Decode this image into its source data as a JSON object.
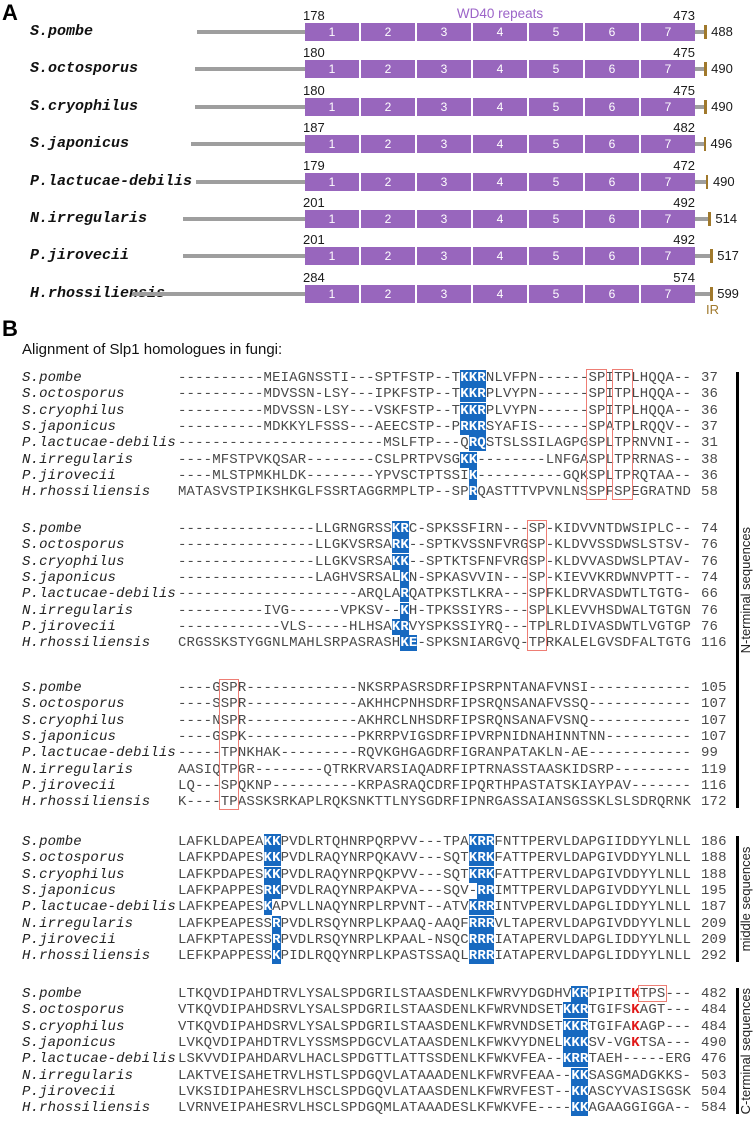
{
  "figure": {
    "panel_a_label": "A",
    "panel_b_label": "B",
    "wd40_label": "WD40 repeats",
    "ir_label": "IR",
    "alignment_title": "Alignment of Slp1 homologues in fungi:",
    "colors": {
      "domain_box": "#9866bd",
      "wd40_text": "#9c64c8",
      "backbone_line": "#9e9e9e",
      "terminal_tick": "#a0792c",
      "highlight_blue": "#1769c0",
      "highlight_red_letter": "#e01818",
      "red_box_border": "#ee7d74"
    },
    "repeat_numbers": [
      "1",
      "2",
      "3",
      "4",
      "5",
      "6",
      "7"
    ],
    "domains": [
      {
        "species": "S.pombe",
        "start": 178,
        "end": 473,
        "total": 488
      },
      {
        "species": "S.octosporus",
        "start": 180,
        "end": 475,
        "total": 490
      },
      {
        "species": "S.cryophilus",
        "start": 180,
        "end": 475,
        "total": 490
      },
      {
        "species": "S.japonicus",
        "start": 187,
        "end": 482,
        "total": 496
      },
      {
        "species": "P.lactucae-debilis",
        "start": 179,
        "end": 472,
        "total": 490
      },
      {
        "species": "N.irregularis",
        "start": 201,
        "end": 492,
        "total": 514
      },
      {
        "species": "P.jirovecii",
        "start": 201,
        "end": 492,
        "total": 517
      },
      {
        "species": "H.rhossiliensis",
        "start": 284,
        "end": 574,
        "total": 599
      }
    ],
    "blocks": [
      {
        "red_boxes": [
          {
            "col": 48,
            "len": 2
          },
          {
            "col": 51,
            "len": 2
          }
        ],
        "rows": [
          {
            "name": "S.pombe",
            "seq": "----------MEIAGNSSTI---SPTFSTP--TKKRNLVFPN------SPITPLHQQA--",
            "num": "37",
            "blue": [
              [
                33,
                3
              ]
            ]
          },
          {
            "name": "S.octosporus",
            "seq": "----------MDVSSN-LSY---IPKFSTP--TKKRPLVYPN------SPITPLHQQA--",
            "num": "36",
            "blue": [
              [
                33,
                3
              ]
            ]
          },
          {
            "name": "S.cryophilus",
            "seq": "----------MDVSSN-LSY---VSKFSTP--TKKRPLVYPN------SPITPLHQQA--",
            "num": "36",
            "blue": [
              [
                33,
                3
              ]
            ]
          },
          {
            "name": "S.japonicus",
            "seq": "----------MDKKYLFSSS---AEECSTP--PRKRSYAFIS------SPATPLRQQV--",
            "num": "37",
            "blue": [
              [
                33,
                3
              ]
            ]
          },
          {
            "name": "P.lactucae-debilis",
            "seq": "------------------------MSLFTP---QRQSTSLSSILAGPGSPLTPRNVNI--",
            "num": "31",
            "blue": [
              [
                34,
                2
              ]
            ]
          },
          {
            "name": "N.irregularis",
            "seq": "----MFSTPVKQSAR--------CSLPRTPVSGKK--------LNFGASPLTPRRNAS--",
            "num": "38",
            "blue": [
              [
                33,
                2
              ]
            ]
          },
          {
            "name": "P.jirovecii",
            "seq": "----MLSTPMKHLDK--------YPVSCTPTSSIK----------GQKSPLTPRQTAA--",
            "num": "36",
            "blue": [
              [
                34,
                1
              ]
            ]
          },
          {
            "name": "H.rhossiliensis",
            "seq": "MATASVSTPIKSHKGLFSSRTAGGRMPLTP--SPRQASTTTVPVNLNSSPFSPEGRATND",
            "num": "58",
            "blue": [
              [
                34,
                1
              ]
            ]
          }
        ]
      },
      {
        "red_boxes": [
          {
            "col": 41,
            "len": 2
          }
        ],
        "rows": [
          {
            "name": "S.pombe",
            "seq": "----------------LLGRNGRSSKRC-SPKSSFIRN---SP-KIDVVNTDWSIPLC--",
            "num": "74",
            "blue": [
              [
                25,
                2
              ]
            ]
          },
          {
            "name": "S.octosporus",
            "seq": "----------------LLGKVSRSARK--SPTKVSSNFVRGSP-KLDVVSSDWSLSTSV-",
            "num": "76",
            "blue": [
              [
                25,
                2
              ]
            ]
          },
          {
            "name": "S.cryophilus",
            "seq": "----------------LLGKVSRSAKK--SPTKTSFNFVRGSP-KLDVVASDWSLPTAV-",
            "num": "76",
            "blue": [
              [
                25,
                2
              ]
            ]
          },
          {
            "name": "S.japonicus",
            "seq": "----------------LAGHVSRSALKN-SPKASVVIN---SP-KIEVVKRDWNVPTT--",
            "num": "74",
            "blue": [
              [
                26,
                1
              ]
            ]
          },
          {
            "name": "P.lactucae-debilis",
            "seq": "---------------------ARQLARQATPKSTLKRA---SPFKLDRVASDWTLTGTG-",
            "num": "66",
            "blue": [
              [
                26,
                1
              ]
            ]
          },
          {
            "name": "N.irregularis",
            "seq": "----------IVG------VPKSV--KH-TPKSSIYRS---SPLKLEVVHSDWALTGTGN",
            "num": "76",
            "blue": [
              [
                26,
                1
              ]
            ]
          },
          {
            "name": "P.jirovecii",
            "seq": "------------VLS-----HLHSAKRVYSPKSSIYRQ---TPLRLDIVASDWTLVGTGP",
            "num": "76",
            "blue": [
              [
                25,
                2
              ]
            ]
          },
          {
            "name": "H.rhossiliensis",
            "seq": "CRGSSKSTYGGNLMAHLSRPASRASHKE-SPKSNIARGVQ-TPRKALELGVSDFALTGTG",
            "num": "116",
            "blue": [
              [
                26,
                2
              ]
            ]
          }
        ]
      },
      {
        "red_boxes": [
          {
            "col": 5,
            "len": 2
          }
        ],
        "rows": [
          {
            "name": "S.pombe",
            "seq": "----GSPR-------------NKSRPASRSDRFIPSRPNTANAFVNSI------------",
            "num": "105",
            "blue": []
          },
          {
            "name": "S.octosporus",
            "seq": "----SSPR-------------AKHHCPNHSDRFIPSRQNSANAFVSSQ------------",
            "num": "107",
            "blue": []
          },
          {
            "name": "S.cryophilus",
            "seq": "----NSPR-------------AKHRCLNHSDRFIPSRQNSANAFVSNQ------------",
            "num": "107",
            "blue": []
          },
          {
            "name": "S.japonicus",
            "seq": "----GSPK-------------PKRRPVIGSDRFIPVRPNIDNAHINNTNN----------",
            "num": "107",
            "blue": []
          },
          {
            "name": "P.lactucae-debilis",
            "seq": "-----TPNKHAK---------RQVKGHGAGDRFIGRANPATAKLN-AE------------",
            "num": "99",
            "blue": []
          },
          {
            "name": "N.irregularis",
            "seq": "AASIQTPGR--------QTRKRVARSIAQADRFIPTRNASSTAASKIDSRP---------",
            "num": "119",
            "blue": []
          },
          {
            "name": "P.jirovecii",
            "seq": "LQ---SPQKNP----------KRPASRAQCDRFIPQRTHPASTATSKIAYPAV-------",
            "num": "116",
            "blue": []
          },
          {
            "name": "H.rhossiliensis",
            "seq": "K----TPASSKSRKAPLRQKSNKTTLNYSGDRFIPNRGASSAIANSGSSKLSLSDRQRNK",
            "num": "172",
            "blue": []
          }
        ]
      },
      {
        "red_boxes": [],
        "rows": [
          {
            "name": "S.pombe",
            "seq": "LAFKLDAPEAKKPVDLRTQHNRPQRPVV---TPAKRRFNTTPERVLDAPGIIDDYYLNLL",
            "num": "186",
            "blue": [
              [
                10,
                2
              ],
              [
                34,
                3
              ]
            ]
          },
          {
            "name": "S.octosporus",
            "seq": "LAFKPDAPESKKPVDLRAQYNRPQKAVV---SQTKRKFATTPERVLDAPGIVDDYYLNLL",
            "num": "188",
            "blue": [
              [
                10,
                2
              ],
              [
                34,
                3
              ]
            ]
          },
          {
            "name": "S.cryophilus",
            "seq": "LAFKPDAPESKKPVDLRAQYNRPQKPVV---SQTKRKFATTPERVLDAPGIVDDYYLNLL",
            "num": "188",
            "blue": [
              [
                10,
                2
              ],
              [
                34,
                3
              ]
            ]
          },
          {
            "name": "S.japonicus",
            "seq": "LAFKPAPPESRKPVDLRAQYNRPAKPVA---SQV-RRIMTTPERVLDAPGIVDDYYLNLL",
            "num": "195",
            "blue": [
              [
                10,
                2
              ],
              [
                35,
                2
              ]
            ]
          },
          {
            "name": "P.lactucae-debilis",
            "seq": "LAFKPEAPESKAPVLLNAQYNRPLRPVNT--ATVKRRINTVPERVLDAPGLIDDYYLNLL",
            "num": "187",
            "blue": [
              [
                10,
                1
              ],
              [
                34,
                3
              ]
            ]
          },
          {
            "name": "N.irregularis",
            "seq": "LAFKPEAPESSRPVDLRSQYNRPLKPAAQ-AAQFRRRVLTAPERVLDAPGIVDDYYLNLL",
            "num": "209",
            "blue": [
              [
                11,
                1
              ],
              [
                34,
                3
              ]
            ]
          },
          {
            "name": "P.jirovecii",
            "seq": "LAFKPTAPESSRPVDLRSQYNRPLKPAAL-NSQCRRRIATAPERVLDAPGLIDDYYLNLL",
            "num": "209",
            "blue": [
              [
                11,
                1
              ],
              [
                34,
                3
              ]
            ]
          },
          {
            "name": "H.rhossiliensis",
            "seq": "LEFKPAPPESSKPIDLRQQYNRPLKPASTSSAQLRRRIATAPERVLDAPGLIDDYYLNLL",
            "num": "292",
            "blue": [
              [
                11,
                1
              ],
              [
                34,
                3
              ]
            ]
          }
        ]
      },
      {
        "red_boxes": [
          {
            "col": 54,
            "len": 3,
            "row": 0,
            "rows": 1
          }
        ],
        "rows": [
          {
            "name": "S.pombe",
            "seq": "LTKQVDIPAHDTRVLYSALSPDGRILSTAASDENLKFWRVYDGDHVKRPIPITKTPS---",
            "num": "482",
            "blue": [
              [
                46,
                2
              ]
            ],
            "red": [
              53
            ]
          },
          {
            "name": "S.octosporus",
            "seq": "VTKQVDIPAHDSRVLYSALSPDGRILSTAASDENLKFWRVNDSETKKRTGIFSKAGT---",
            "num": "484",
            "blue": [
              [
                45,
                3
              ]
            ],
            "red": [
              53
            ]
          },
          {
            "name": "S.cryophilus",
            "seq": "VTKQVDIPAHDSRVLYSALSPDGRILSTAASDENLKFWRVNDSETKKRTGIFAKAGP---",
            "num": "484",
            "blue": [
              [
                45,
                3
              ]
            ],
            "red": [
              53
            ]
          },
          {
            "name": "S.japonicus",
            "seq": "LVKQVDIPAHDTRVLYSSMSPDGCVLATAASDENLKFWKVYDNELKKKSV-VGKTSA---",
            "num": "490",
            "blue": [
              [
                45,
                3
              ]
            ],
            "red": [
              53
            ]
          },
          {
            "name": "P.lactucae-debilis",
            "seq": "LSKVVDIPAHDARVLHACLSPDGTTLATTSSDENLKFWKVFEA--KRRTAEH-----ERG",
            "num": "476",
            "blue": [
              [
                45,
                3
              ]
            ],
            "red": []
          },
          {
            "name": "N.irregularis",
            "seq": "LAKTVEISAHETRVLHSTLSPDGQVLATAAADENLKFWRVFEAA--KKSASGMADGKKS-",
            "num": "503",
            "blue": [
              [
                46,
                2
              ]
            ],
            "red": []
          },
          {
            "name": "P.jirovecii",
            "seq": "LVKSIDIPAHESRVLHSCLSPDGQVLATAASDENLKFWRVFEST--KKASCYVASISGSK",
            "num": "504",
            "blue": [
              [
                46,
                2
              ]
            ],
            "red": []
          },
          {
            "name": "H.rhossiliensis",
            "seq": "LVRNVEIPAHESRVLHSCLSPDGQMLATAAADESLKFWKVFE----KKAGAAGGIGGA--",
            "num": "584",
            "blue": [
              [
                46,
                2
              ]
            ],
            "red": []
          }
        ]
      }
    ],
    "side_groups": [
      {
        "label": "N-terminal sequences",
        "from": 0,
        "to": 2
      },
      {
        "label": "middle sequences",
        "from": 3,
        "to": 3
      },
      {
        "label": "C-terminal sequences",
        "from": 4,
        "to": 4
      }
    ]
  }
}
